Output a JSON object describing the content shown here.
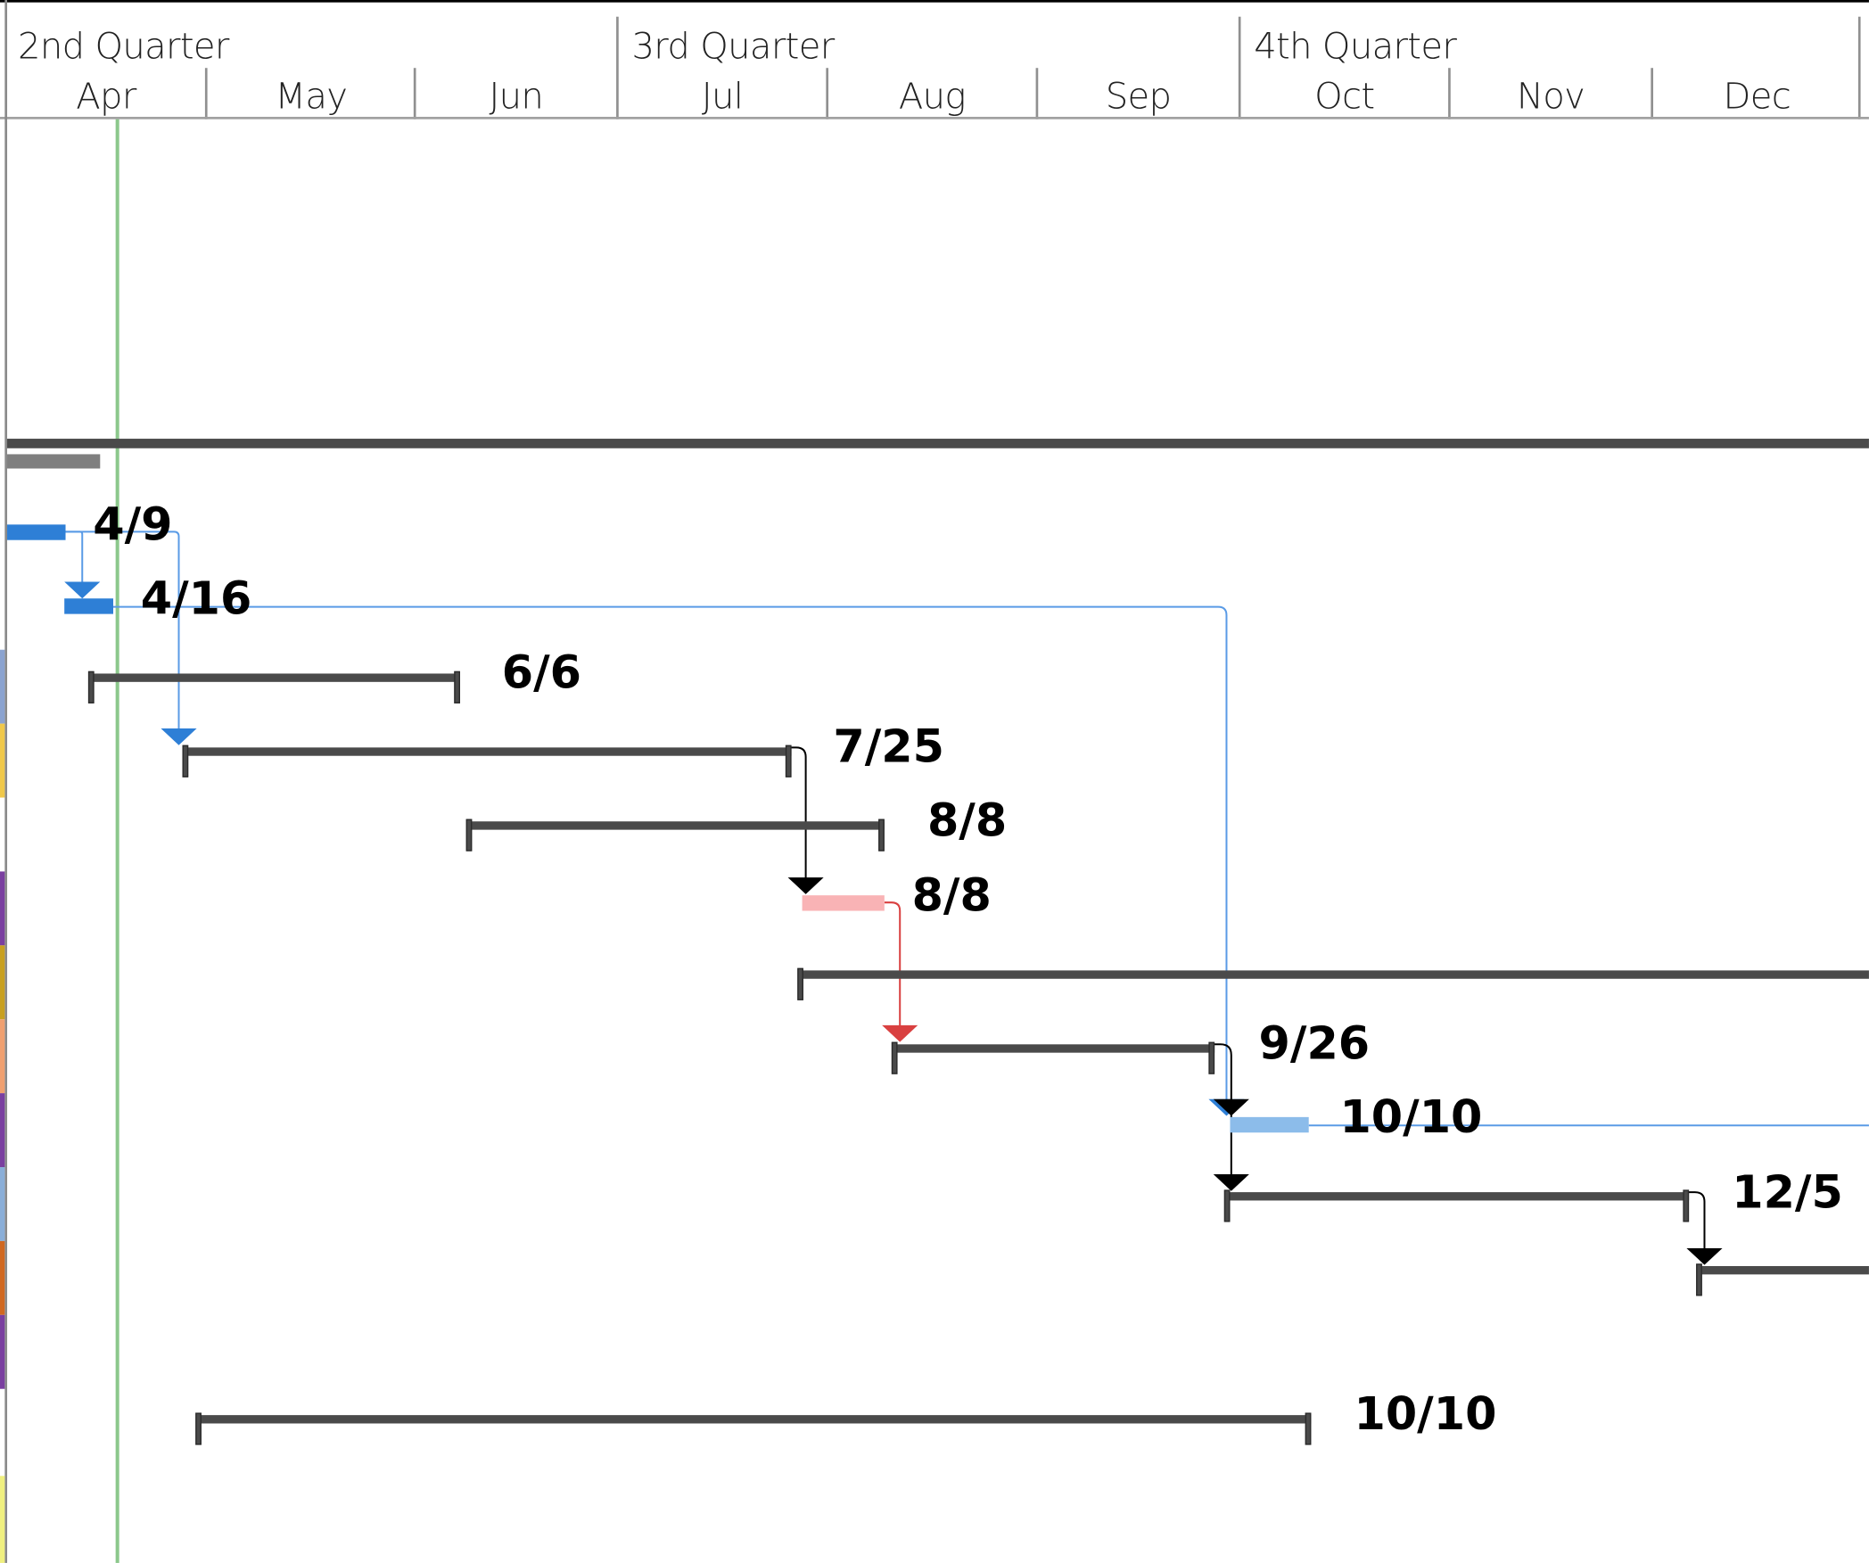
{
  "timescale": {
    "quarters": [
      {
        "label": "2nd Quarter"
      },
      {
        "label": "3rd Quarter"
      },
      {
        "label": "4th Quarter"
      }
    ],
    "months": [
      {
        "label": "Apr"
      },
      {
        "label": "May"
      },
      {
        "label": "Jun"
      },
      {
        "label": "Jul"
      },
      {
        "label": "Aug"
      },
      {
        "label": "Sep"
      },
      {
        "label": "Oct"
      },
      {
        "label": "Nov"
      },
      {
        "label": "Dec"
      }
    ]
  },
  "colors": {
    "summary_bar": "#4a4a4a",
    "task_blue": "#2e7fd6",
    "task_light_blue": "#8cbcea",
    "task_pink": "#f9b3b5",
    "link_blue": "#5a9be6",
    "link_red": "#d94040",
    "link_black": "#000000",
    "today_line": "#8cc88c",
    "progress_gray": "#7f7f7f"
  },
  "row_strip_colors": [
    "#8ba3d0",
    "#f0c84a",
    "#7a3fa0",
    "#c8a020",
    "#f0a070",
    "#7a3fa0",
    "#8aaed8",
    "#d06820",
    "#7a3fa0",
    "#f0f080"
  ],
  "rows": [
    {
      "id": "r0",
      "type": "summary",
      "label": ""
    },
    {
      "id": "r1",
      "type": "progress",
      "label": ""
    },
    {
      "id": "r2",
      "type": "task-blue",
      "label": "4/9"
    },
    {
      "id": "r3",
      "type": "task-blue",
      "label": "4/16"
    },
    {
      "id": "r4",
      "type": "summary",
      "label": "6/6"
    },
    {
      "id": "r5",
      "type": "summary",
      "label": "7/25"
    },
    {
      "id": "r6",
      "type": "summary",
      "label": "8/8"
    },
    {
      "id": "r7",
      "type": "task-pink",
      "label": "8/8"
    },
    {
      "id": "r8",
      "type": "summary",
      "label": ""
    },
    {
      "id": "r9",
      "type": "summary",
      "label": "9/26"
    },
    {
      "id": "r10",
      "type": "task-light-blue",
      "label": "10/10"
    },
    {
      "id": "r11",
      "type": "summary",
      "label": "12/5"
    },
    {
      "id": "r12",
      "type": "summary",
      "label": ""
    },
    {
      "id": "r13",
      "type": "summary",
      "label": "10/10"
    }
  ]
}
